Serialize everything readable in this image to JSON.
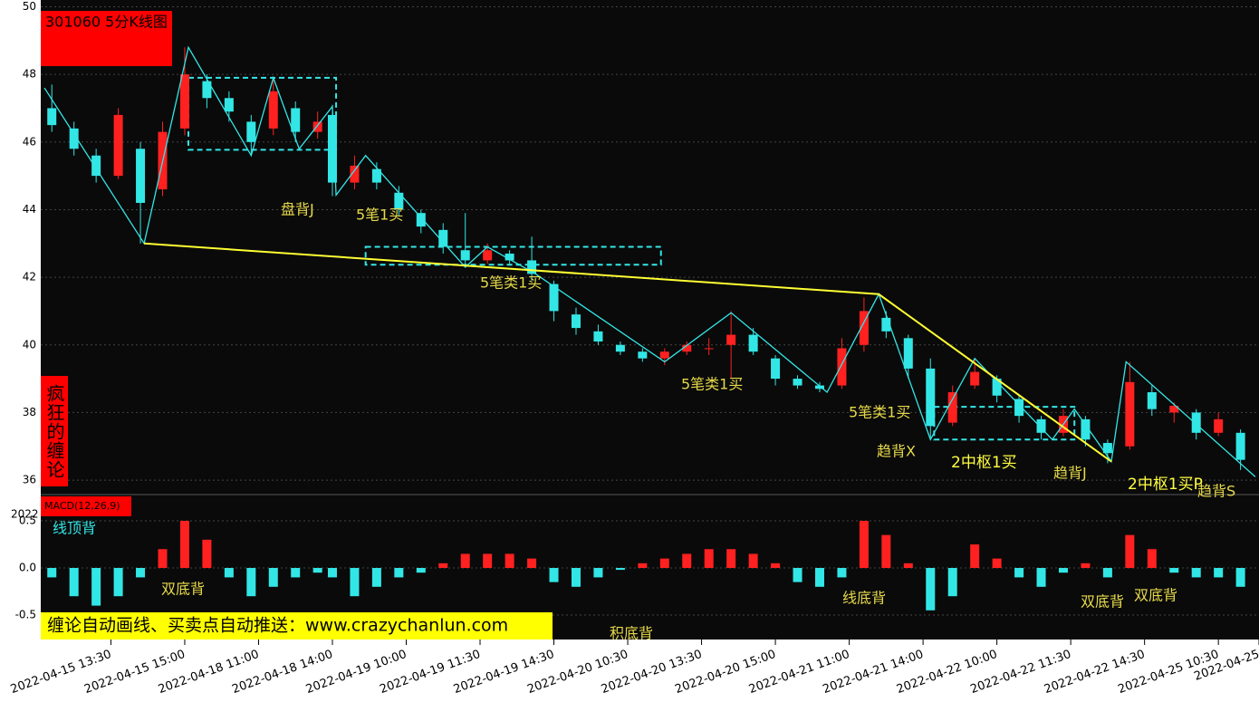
{
  "chart_data": [
    {
      "type": "candlestick",
      "title": "301060 5分K线图",
      "xlim": [
        0,
        330
      ],
      "ylim": [
        35.6,
        50.2
      ],
      "yticks": [
        36,
        38,
        40,
        42,
        44,
        46,
        48,
        50
      ],
      "grid": true,
      "up_color": "#ff2020",
      "down_color": "#33e6e6",
      "xticks": [
        {
          "value": 19,
          "label": "2022-04-15 13:30"
        },
        {
          "value": 39,
          "label": "2022-04-15 15:00"
        },
        {
          "value": 59,
          "label": "2022-04-18 11:00"
        },
        {
          "value": 79,
          "label": "2022-04-18 14:00"
        },
        {
          "value": 99,
          "label": "2022-04-19 10:00"
        },
        {
          "value": 119,
          "label": "2022-04-19 11:30"
        },
        {
          "value": 139,
          "label": "2022-04-19 14:30"
        },
        {
          "value": 159,
          "label": "2022-04-20 10:30"
        },
        {
          "value": 179,
          "label": "2022-04-20 13:30"
        },
        {
          "value": 199,
          "label": "2022-04-20 15:00"
        },
        {
          "value": 219,
          "label": "2022-04-21 11:00"
        },
        {
          "value": 239,
          "label": "2022-04-21 14:00"
        },
        {
          "value": 259,
          "label": "2022-04-22 10:00"
        },
        {
          "value": 279,
          "label": "2022-04-22 11:30"
        },
        {
          "value": 299,
          "label": "2022-04-22 14:30"
        },
        {
          "value": 319,
          "label": "2022-04-25 10:30"
        },
        {
          "value": 330,
          "label": "2022-04-25"
        }
      ],
      "x": [
        3,
        9,
        15,
        21,
        27,
        33,
        39,
        45,
        51,
        57,
        63,
        69,
        75,
        79,
        85,
        91,
        97,
        103,
        109,
        115,
        121,
        127,
        133,
        139,
        145,
        151,
        157,
        163,
        169,
        175,
        181,
        187,
        193,
        199,
        205,
        211,
        217,
        223,
        229,
        235,
        241,
        247,
        253,
        259,
        265,
        271,
        277,
        283,
        289,
        295,
        301,
        307,
        313,
        319,
        325
      ],
      "open": [
        47.0,
        46.4,
        45.6,
        45.0,
        45.8,
        44.6,
        46.4,
        47.8,
        47.3,
        46.6,
        46.4,
        47.0,
        46.3,
        46.8,
        44.8,
        45.2,
        44.5,
        43.9,
        43.4,
        42.8,
        42.5,
        42.7,
        42.5,
        41.8,
        40.9,
        40.4,
        40.0,
        39.8,
        39.6,
        39.8,
        39.9,
        40.0,
        40.3,
        39.6,
        39.0,
        38.8,
        38.8,
        40.0,
        40.8,
        40.2,
        39.3,
        37.7,
        38.8,
        39.0,
        38.4,
        37.8,
        37.4,
        37.8,
        37.1,
        37.0,
        38.6,
        38.0,
        38.0,
        37.4,
        37.4
      ],
      "high": [
        47.7,
        46.6,
        45.8,
        47.0,
        46.0,
        46.6,
        48.8,
        48.0,
        47.5,
        46.8,
        47.9,
        47.2,
        46.9,
        47.1,
        45.6,
        45.4,
        44.7,
        44.0,
        43.6,
        43.9,
        43.0,
        42.8,
        43.2,
        41.9,
        41.1,
        40.6,
        40.1,
        39.9,
        39.9,
        40.1,
        40.2,
        41.0,
        40.5,
        39.7,
        39.1,
        38.9,
        40.2,
        41.4,
        41.0,
        40.3,
        39.6,
        38.8,
        39.6,
        39.1,
        38.5,
        37.9,
        38.1,
        37.9,
        37.2,
        39.5,
        38.8,
        38.3,
        38.1,
        38.0,
        37.5
      ],
      "low": [
        46.3,
        45.6,
        44.8,
        44.9,
        43.0,
        44.4,
        46.2,
        47.0,
        46.6,
        45.6,
        46.2,
        46.0,
        46.1,
        44.4,
        44.6,
        44.6,
        43.8,
        43.3,
        42.7,
        42.3,
        42.4,
        42.4,
        41.9,
        40.7,
        40.3,
        40.0,
        39.7,
        39.5,
        39.4,
        39.7,
        39.7,
        39.0,
        39.7,
        38.8,
        38.7,
        38.6,
        38.7,
        39.8,
        40.2,
        39.0,
        37.2,
        37.6,
        38.7,
        38.3,
        37.7,
        37.2,
        37.3,
        37.0,
        36.5,
        36.9,
        37.9,
        37.7,
        37.2,
        37.3,
        36.3
      ],
      "close": [
        46.5,
        45.8,
        45.0,
        46.8,
        44.2,
        46.3,
        48.0,
        47.3,
        46.9,
        46.0,
        47.5,
        46.3,
        46.6,
        44.8,
        45.3,
        44.8,
        44.0,
        43.5,
        42.9,
        42.5,
        42.8,
        42.5,
        42.1,
        41.0,
        40.5,
        40.1,
        39.8,
        39.6,
        39.8,
        40.0,
        39.9,
        40.3,
        39.8,
        39.0,
        38.8,
        38.7,
        39.9,
        41.0,
        40.4,
        39.3,
        37.6,
        38.6,
        39.2,
        38.5,
        37.9,
        37.4,
        37.9,
        37.2,
        36.8,
        38.9,
        38.1,
        38.2,
        37.4,
        37.8,
        36.6
      ],
      "bi": {
        "color": "#33e6e6",
        "x": [
          1,
          28,
          40,
          57,
          63,
          70,
          79,
          80,
          88,
          115,
          121,
          134,
          169,
          187,
          213,
          227,
          241,
          253,
          274,
          280,
          290,
          294,
          329
        ],
        "y": [
          47.6,
          43.0,
          48.8,
          45.6,
          47.9,
          45.8,
          47.05,
          44.43,
          45.6,
          42.3,
          42.9,
          42.1,
          39.5,
          40.95,
          38.6,
          41.5,
          37.2,
          39.6,
          37.2,
          38.1,
          36.55,
          39.5,
          36.1
        ]
      },
      "trend": {
        "color": "#ffff33",
        "x": [
          28,
          227,
          290
        ],
        "y": [
          43.0,
          41.5,
          36.55
        ]
      },
      "pivots": [
        {
          "x0": 40,
          "x1": 80,
          "top": 47.9,
          "bottom": 45.77
        },
        {
          "x0": 88,
          "x1": 168,
          "top": 42.9,
          "bottom": 42.37
        },
        {
          "x0": 242,
          "x1": 280,
          "top": 38.17,
          "bottom": 37.2
        }
      ],
      "annotations": [
        {
          "text": "盘背J",
          "color": "#e6d94a"
        },
        {
          "text": "5笔1买",
          "color": "#e6d94a"
        },
        {
          "text": "5笔类1买",
          "color": "#e6d94a"
        },
        {
          "text": "5笔类1买",
          "color": "#e6d94a"
        },
        {
          "text": "5笔类1买",
          "color": "#e6d94a"
        },
        {
          "text": "趋背X",
          "color": "#e6d94a"
        },
        {
          "text": "2中枢1买",
          "color": "#ffff40"
        },
        {
          "text": "趋背J",
          "color": "#e6d94a"
        },
        {
          "text": "2中枢1买P",
          "color": "#ffff40"
        },
        {
          "text": "趋背S",
          "color": "#e6d94a"
        }
      ]
    },
    {
      "type": "histogram-bars",
      "title": "MACD(12,26,9)",
      "ylim": [
        -0.75,
        0.76
      ],
      "yticks": [
        0.5,
        {
          "value": 0,
          "label": "0.0"
        },
        -0.5
      ],
      "up_color": "#ff2020",
      "down_color": "#33e6e6",
      "x": [
        3,
        9,
        15,
        21,
        27,
        33,
        39,
        45,
        51,
        57,
        63,
        69,
        75,
        79,
        85,
        91,
        97,
        103,
        109,
        115,
        121,
        127,
        133,
        139,
        145,
        151,
        157,
        163,
        169,
        175,
        181,
        187,
        193,
        199,
        205,
        211,
        217,
        223,
        229,
        235,
        241,
        247,
        253,
        259,
        265,
        271,
        277,
        283,
        289,
        295,
        301,
        307,
        313,
        319,
        325
      ],
      "values": [
        -0.1,
        -0.3,
        -0.4,
        -0.3,
        -0.1,
        0.2,
        0.5,
        0.3,
        -0.1,
        -0.3,
        -0.2,
        -0.1,
        -0.05,
        -0.1,
        -0.3,
        -0.2,
        -0.1,
        -0.05,
        0.05,
        0.15,
        0.15,
        0.15,
        0.1,
        -0.15,
        -0.2,
        -0.1,
        -0.02,
        0.05,
        0.1,
        0.15,
        0.2,
        0.2,
        0.15,
        0.05,
        -0.15,
        -0.2,
        -0.1,
        0.5,
        0.35,
        0.05,
        -0.45,
        -0.3,
        0.25,
        0.1,
        -0.1,
        -0.2,
        -0.05,
        0.05,
        -0.1,
        0.35,
        0.2,
        -0.05,
        -0.1,
        -0.1,
        -0.2
      ],
      "annotations": [
        {
          "text": "线顶背",
          "color": "#33e6e6"
        },
        {
          "text": "双底背",
          "color": "#e6d94a"
        },
        {
          "text": "积底背",
          "color": "#e6d94a"
        },
        {
          "text": "线底背",
          "color": "#e6d94a"
        },
        {
          "text": "双底背",
          "color": "#e6d94a"
        },
        {
          "text": "双底背",
          "color": "#e6d94a"
        }
      ]
    }
  ],
  "side_label": "疯狂的缠论",
  "corner_text": "2022",
  "banner": "缠论自动画线、买卖点自动推送：www.crazychanlun.com"
}
